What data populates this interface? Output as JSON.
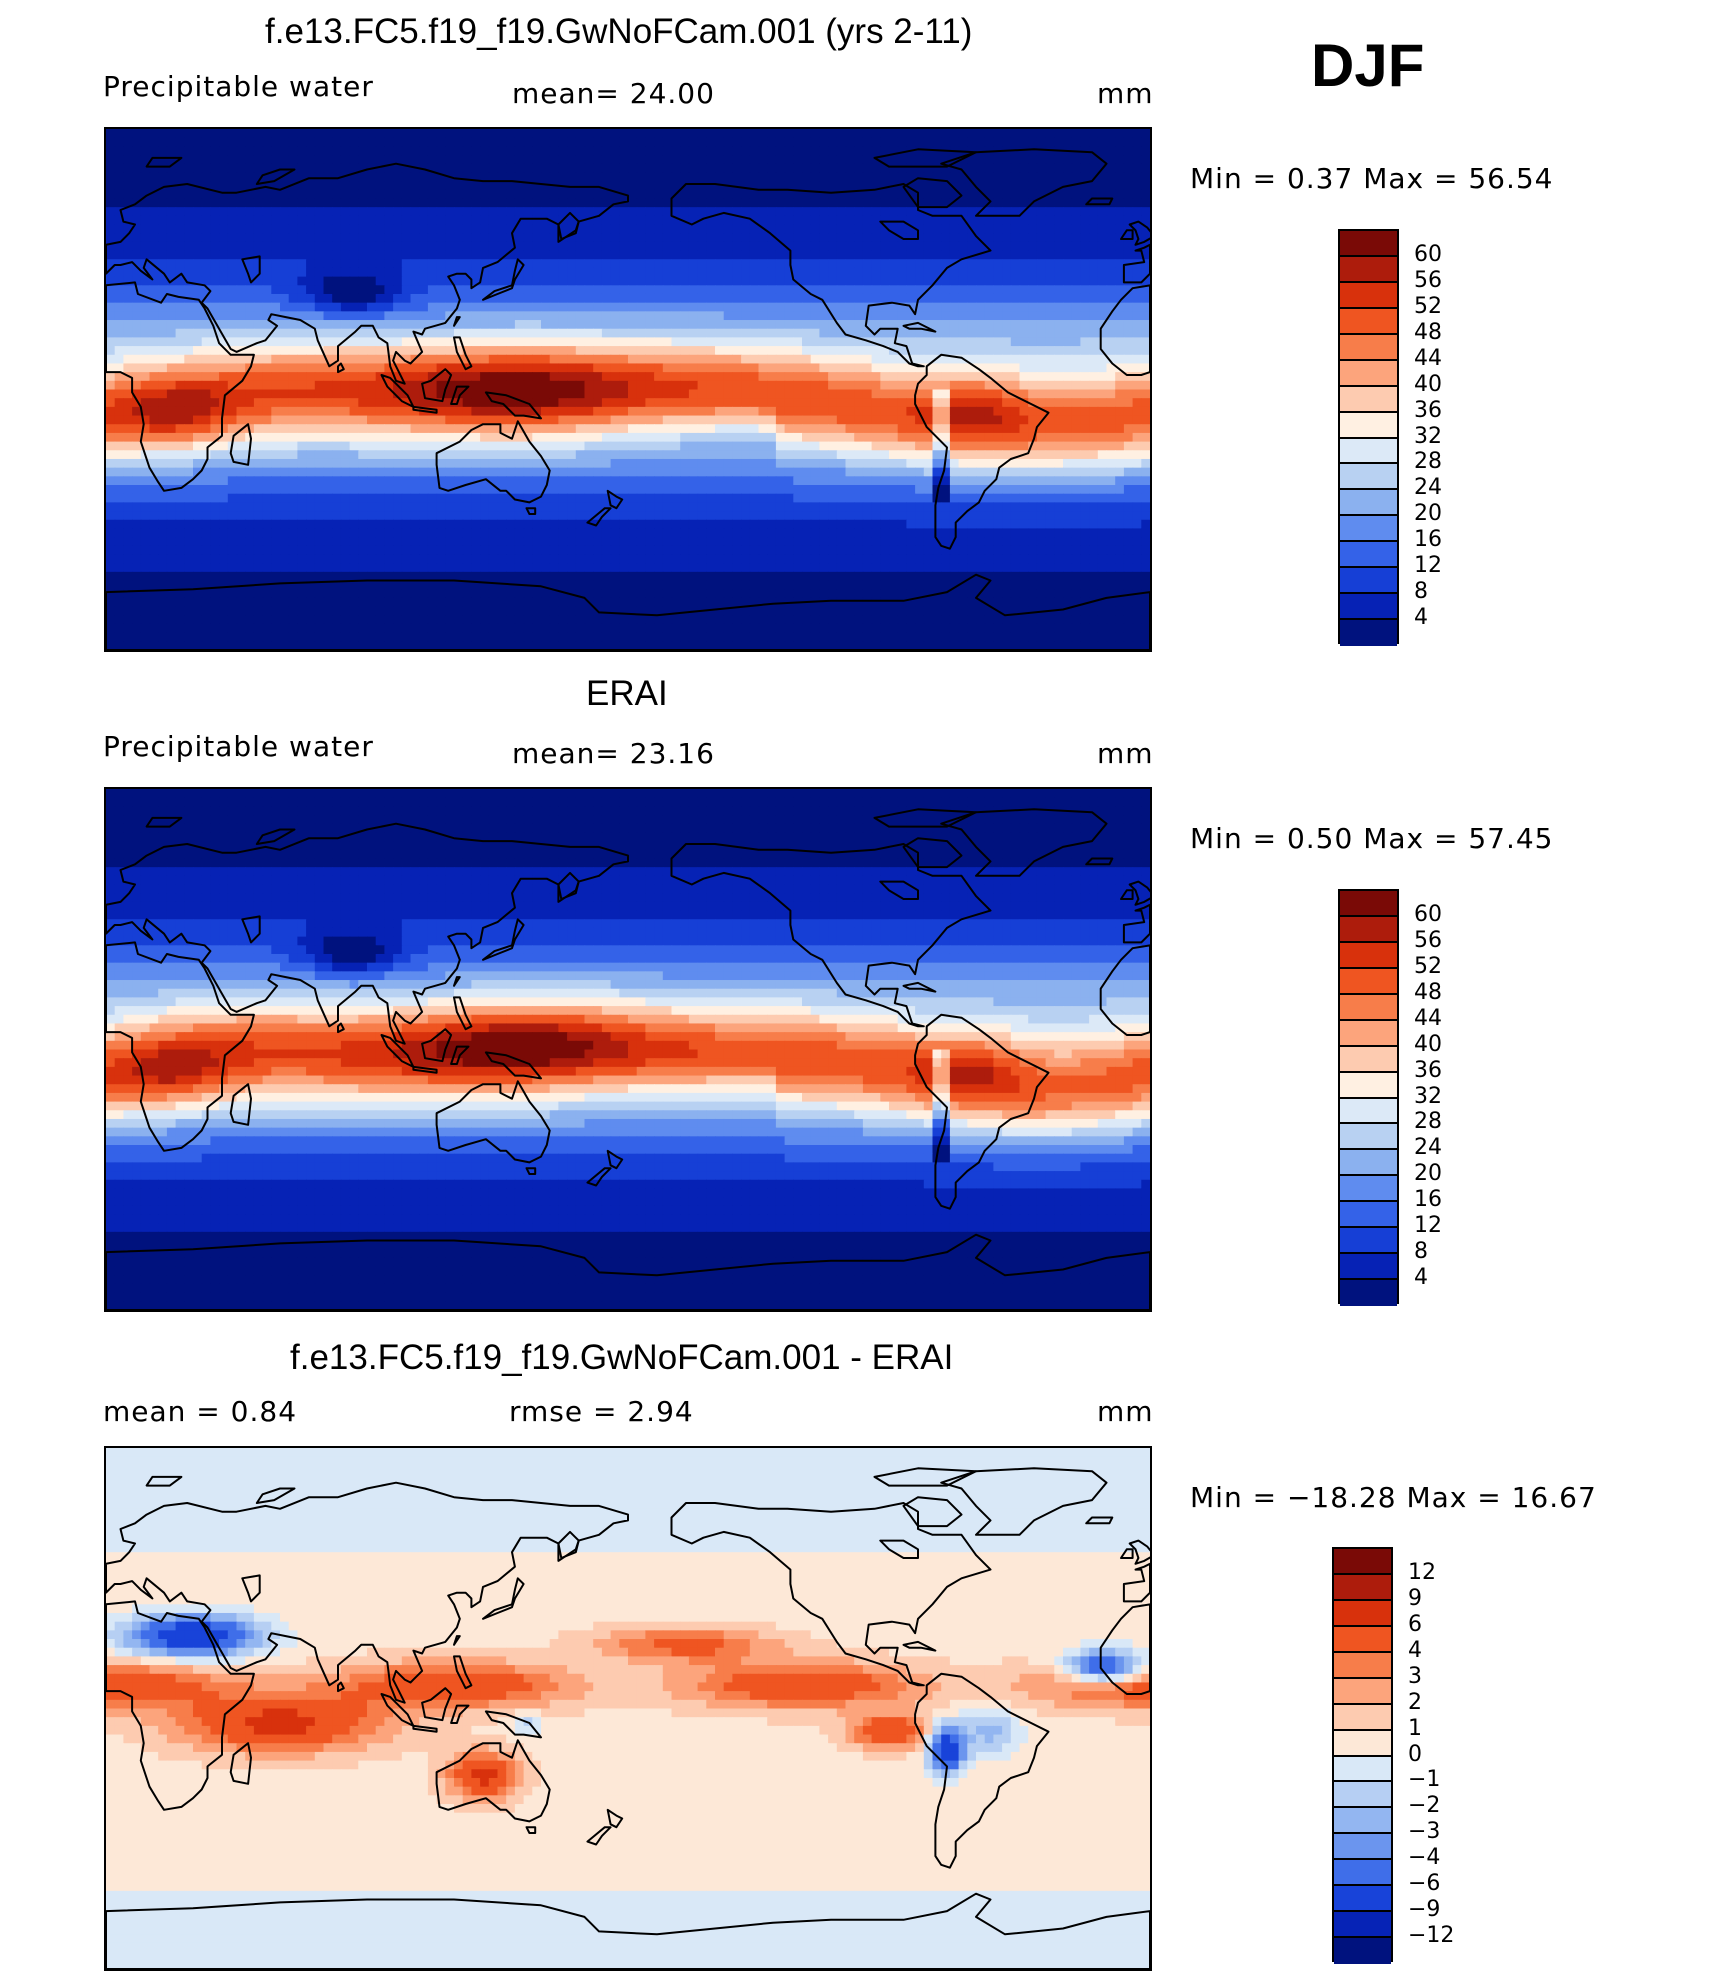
{
  "season": "DJF",
  "panels": [
    {
      "title": "f.e13.FC5.f19_f19.GwNoFCam.001 (yrs 2-11)",
      "left_label": "Precipitable  water",
      "mid_label": "mean=   24.00",
      "units": "mm",
      "minmax": "Min  =      0.37  Max  =     56.54",
      "ticks": [
        "60",
        "56",
        "52",
        "48",
        "44",
        "40",
        "36",
        "32",
        "28",
        "24",
        "20",
        "16",
        "12",
        "8",
        "4"
      ],
      "colors": [
        "#7a0a06",
        "#ad1c0c",
        "#d8310c",
        "#ef5521",
        "#f77d4a",
        "#fca47c",
        "#fdcbb0",
        "#fff0e2",
        "#dce9f7",
        "#b8d1f2",
        "#8bb1ef",
        "#5f8cef",
        "#3462e8",
        "#163fd6",
        "#0622b5",
        "#00127e"
      ],
      "mode": "abs"
    },
    {
      "title": "ERAI",
      "left_label": "Precipitable  water",
      "mid_label": "mean=   23.16",
      "units": "mm",
      "minmax": "Min  =      0.50  Max  =     57.45",
      "ticks": [
        "60",
        "56",
        "52",
        "48",
        "44",
        "40",
        "36",
        "32",
        "28",
        "24",
        "20",
        "16",
        "12",
        "8",
        "4"
      ],
      "colors": [
        "#7a0a06",
        "#ad1c0c",
        "#d8310c",
        "#ef5521",
        "#f77d4a",
        "#fca47c",
        "#fdcbb0",
        "#fff0e2",
        "#dce9f7",
        "#b8d1f2",
        "#8bb1ef",
        "#5f8cef",
        "#3462e8",
        "#163fd6",
        "#0622b5",
        "#00127e"
      ],
      "mode": "abs"
    },
    {
      "title": "f.e13.FC5.f19_f19.GwNoFCam.001 - ERAI",
      "left_label": "mean  =     0.84",
      "mid_label": "rmse  =     2.94",
      "units": "mm",
      "minmax": "Min  = −18.28  Max  =     16.67",
      "ticks": [
        "12",
        "9",
        "6",
        "4",
        "3",
        "2",
        "1",
        "0",
        "−1",
        "−2",
        "−3",
        "−4",
        "−6",
        "−9",
        "−12"
      ],
      "colors": [
        "#7a0a06",
        "#ad1c0c",
        "#d8310c",
        "#ef5521",
        "#f77d4a",
        "#fca47c",
        "#fdcbb0",
        "#fde8d7",
        "#d9e8f7",
        "#b6cff3",
        "#93b6f1",
        "#6b95ee",
        "#3f6ee9",
        "#1843d9",
        "#0623b6",
        "#00127e"
      ],
      "mode": "diff"
    }
  ]
}
